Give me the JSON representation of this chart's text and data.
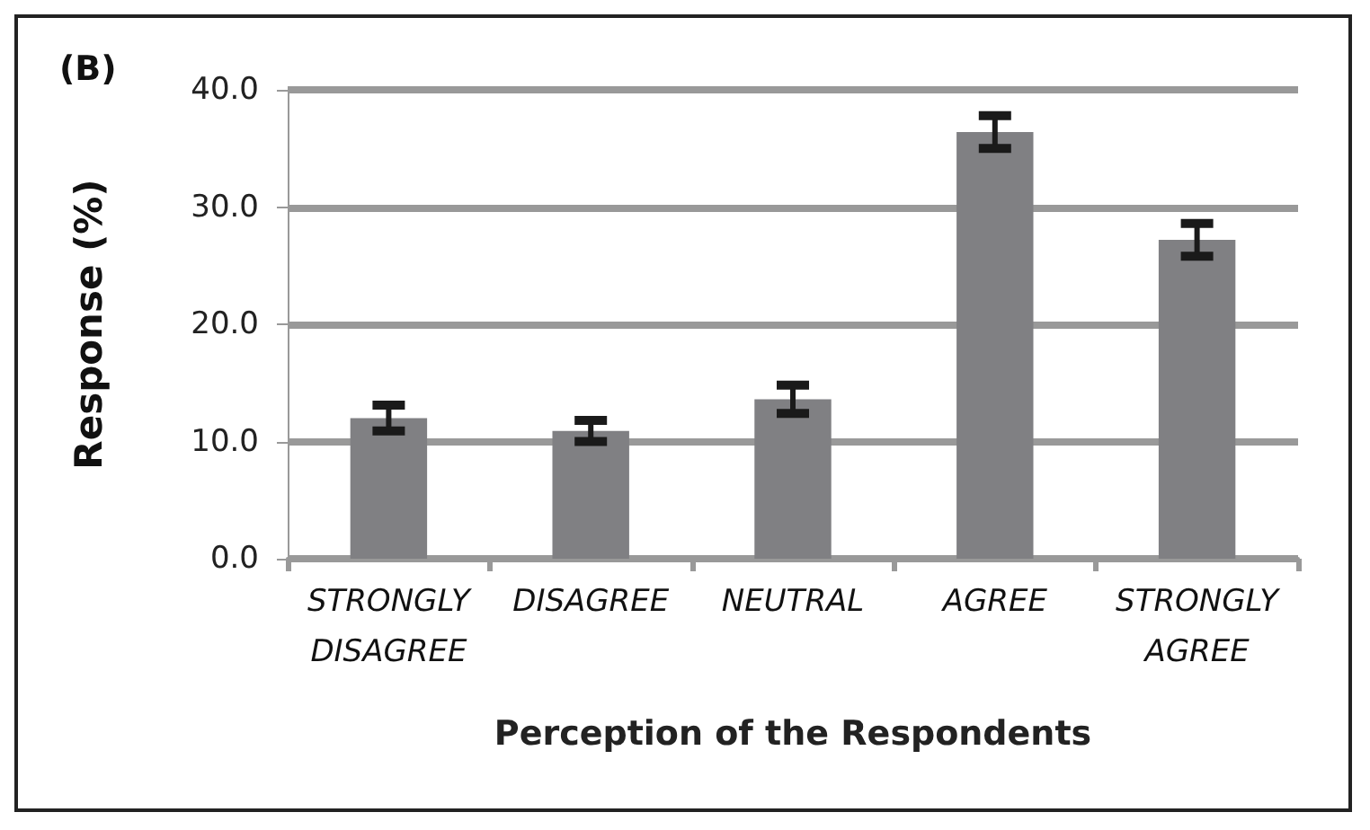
{
  "chart_data": {
    "type": "bar",
    "title": "(B)",
    "xlabel": "Perception of the Respondents",
    "ylabel": "Response (%)",
    "categories": [
      "STRONGLY\nDISAGREE",
      "DISAGREE",
      "NEUTRAL",
      "AGREE",
      "STRONGLY\nAGREE"
    ],
    "values": [
      12.0,
      10.9,
      13.6,
      36.4,
      27.2
    ],
    "errors": [
      1.1,
      0.9,
      1.2,
      1.4,
      1.4
    ],
    "color": "#808083",
    "ylim": [
      0,
      40
    ],
    "yticks": [
      {
        "value": 0,
        "label": "0.0"
      },
      {
        "value": 10,
        "label": "10.0"
      },
      {
        "value": 20,
        "label": "20.0"
      },
      {
        "value": 30,
        "label": "30.0"
      },
      {
        "value": 40,
        "label": "40.0"
      }
    ],
    "grid": "y"
  }
}
